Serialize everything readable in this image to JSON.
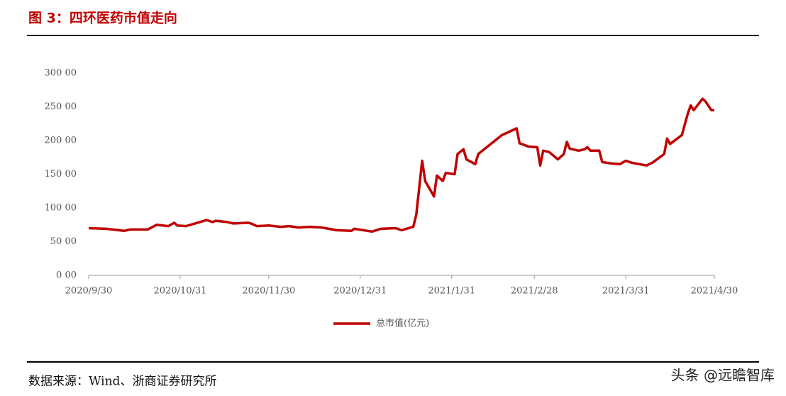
{
  "header": {
    "title": "图 3：四环医药市值走向"
  },
  "chart_data": {
    "type": "line",
    "x": [
      "2020/9/30",
      "2020/10/6",
      "2020/10/12",
      "2020/10/14",
      "2020/10/20",
      "2020/10/23",
      "2020/10/27",
      "2020/10/29",
      "2020/10/30",
      "2020/11/2",
      "2020/11/5",
      "2020/11/9",
      "2020/11/11",
      "2020/11/12",
      "2020/11/16",
      "2020/11/18",
      "2020/11/23",
      "2020/11/24",
      "2020/11/26",
      "2020/11/30",
      "2020/12/4",
      "2020/12/7",
      "2020/12/10",
      "2020/12/14",
      "2020/12/18",
      "2020/12/23",
      "2020/12/28",
      "2020/12/29",
      "2021/1/4",
      "2021/1/7",
      "2021/1/12",
      "2021/1/14",
      "2021/1/18",
      "2021/1/19",
      "2021/1/21",
      "2021/1/22",
      "2021/1/25",
      "2021/1/26",
      "2021/1/28",
      "2021/1/29",
      "2021/2/1",
      "2021/2/2",
      "2021/2/4",
      "2021/2/5",
      "2021/2/8",
      "2021/2/9",
      "2021/2/17",
      "2021/2/19",
      "2021/2/22",
      "2021/2/23",
      "2021/2/26",
      "2021/3/1",
      "2021/3/2",
      "2021/3/3",
      "2021/3/5",
      "2021/3/8",
      "2021/3/10",
      "2021/3/11",
      "2021/3/12",
      "2021/3/15",
      "2021/3/17",
      "2021/3/18",
      "2021/3/19",
      "2021/3/22",
      "2021/3/23",
      "2021/3/26",
      "2021/3/29",
      "2021/3/31",
      "2021/4/2",
      "2021/4/7",
      "2021/4/9",
      "2021/4/13",
      "2021/4/14",
      "2021/4/15",
      "2021/4/19",
      "2021/4/21",
      "2021/4/22",
      "2021/4/23",
      "2021/4/26",
      "2021/4/27",
      "2021/4/29",
      "2021/4/30"
    ],
    "series": [
      {
        "name": "总市值(亿元)",
        "color": "#c00000",
        "values": [
          70,
          69,
          66,
          68,
          68,
          75,
          73,
          78,
          74,
          73,
          77,
          82,
          79,
          81,
          79,
          77,
          78,
          77,
          73,
          74,
          72,
          73,
          71,
          72,
          71,
          67,
          66,
          69,
          65,
          69,
          70,
          67,
          72,
          90,
          170,
          140,
          117,
          148,
          140,
          152,
          150,
          180,
          187,
          172,
          165,
          180,
          208,
          212,
          218,
          196,
          191,
          190,
          163,
          185,
          183,
          172,
          180,
          198,
          188,
          185,
          187,
          190,
          185,
          185,
          168,
          166,
          165,
          170,
          167,
          163,
          167,
          180,
          203,
          195,
          208,
          240,
          252,
          245,
          262,
          258,
          245,
          245
        ]
      }
    ],
    "xlim": [
      "2020/9/30",
      "2021/4/30"
    ],
    "xticks": [
      "2020/9/30",
      "2020/10/31",
      "2020/11/30",
      "2020/12/31",
      "2021/1/31",
      "2021/2/28",
      "2021/3/31",
      "2021/4/30"
    ],
    "ylim": [
      0,
      300
    ],
    "yticks": [
      {
        "value": 0,
        "label": "0 00"
      },
      {
        "value": 50,
        "label": "50 00"
      },
      {
        "value": 100,
        "label": "100 00"
      },
      {
        "value": 150,
        "label": "150 00"
      },
      {
        "value": 200,
        "label": "200 00"
      },
      {
        "value": 250,
        "label": "250 00"
      },
      {
        "value": 300,
        "label": "300 00"
      }
    ]
  },
  "footer": {
    "source": "数据来源：Wind、浙商证券研究所",
    "watermark": "头条 @远瞻智库"
  }
}
